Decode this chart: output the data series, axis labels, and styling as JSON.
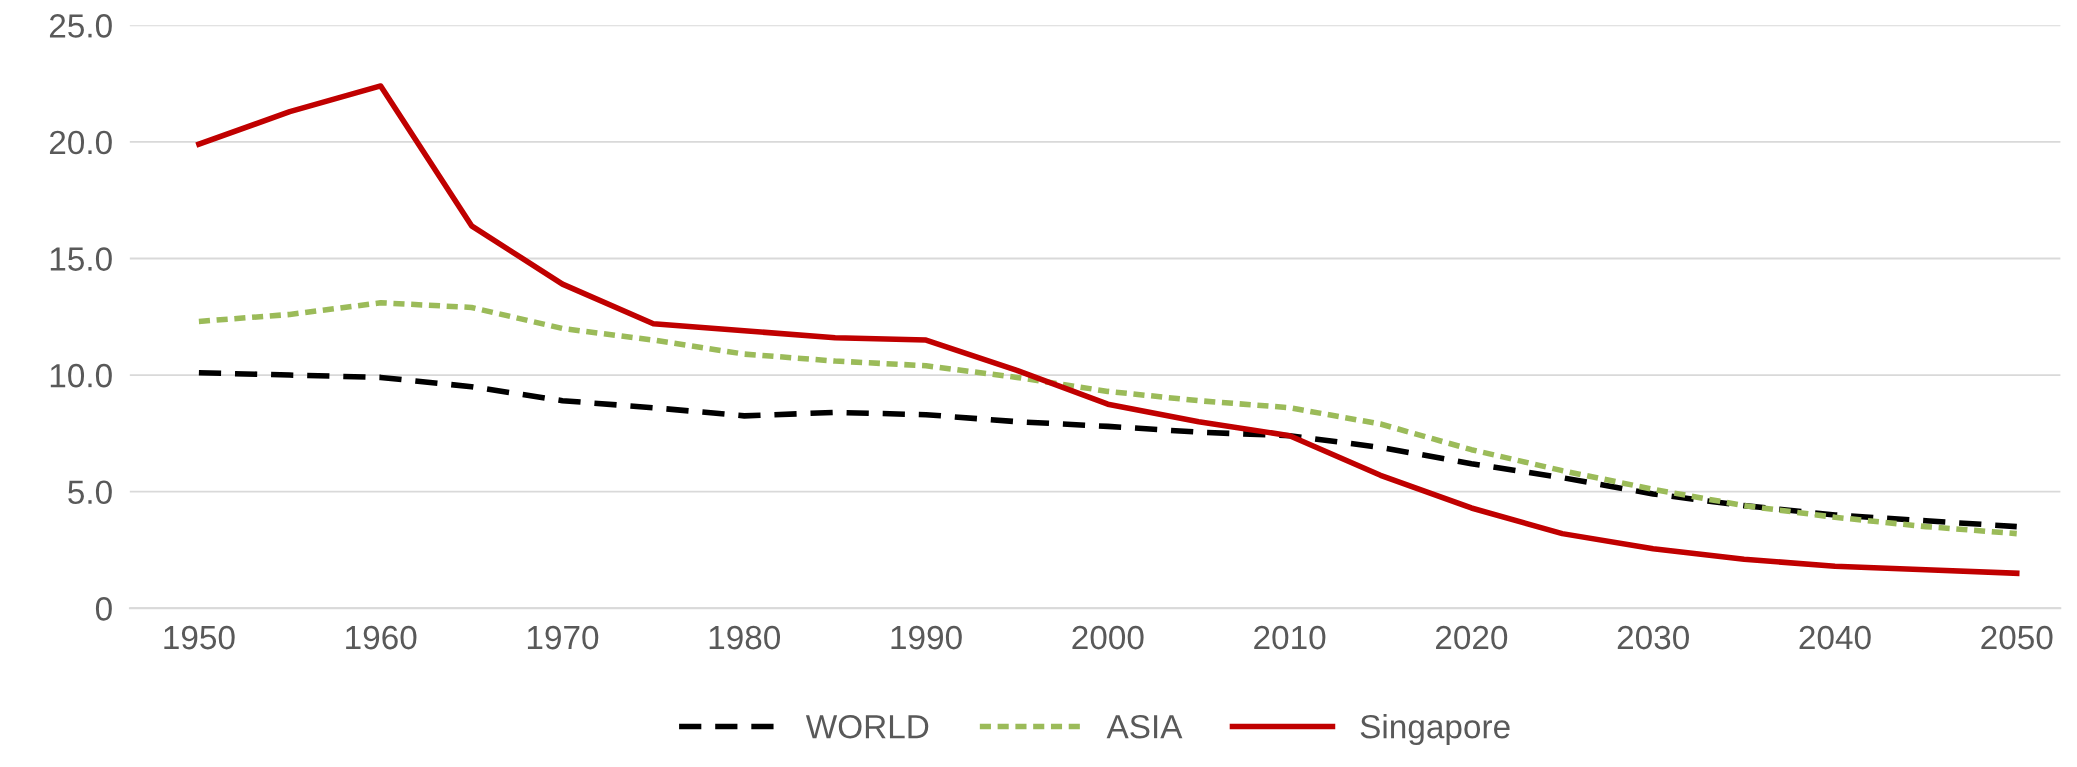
{
  "chart_data": {
    "type": "line",
    "x": [
      1950,
      1955,
      1960,
      1965,
      1970,
      1975,
      1980,
      1985,
      1990,
      1995,
      2000,
      2005,
      2010,
      2015,
      2020,
      2025,
      2030,
      2035,
      2040,
      2045,
      2050
    ],
    "series": [
      {
        "name": "WORLD",
        "color": "#000000",
        "line_style": "dashed",
        "values": [
          10.1,
          10.0,
          9.9,
          9.5,
          8.9,
          8.6,
          8.25,
          8.4,
          8.3,
          8.0,
          7.8,
          7.55,
          7.4,
          6.9,
          6.2,
          5.6,
          4.9,
          4.4,
          4.0,
          3.75,
          3.5
        ]
      },
      {
        "name": "ASIA",
        "color": "#9bbb59",
        "line_style": "dotted",
        "values": [
          12.3,
          12.6,
          13.1,
          12.9,
          12.0,
          11.5,
          10.9,
          10.6,
          10.4,
          9.9,
          9.3,
          8.9,
          8.6,
          7.9,
          6.8,
          5.9,
          5.1,
          4.4,
          3.9,
          3.5,
          3.2
        ]
      },
      {
        "name": "Singapore",
        "color": "#c00000",
        "line_style": "solid",
        "values": [
          19.9,
          21.3,
          22.4,
          16.4,
          13.9,
          12.2,
          11.9,
          11.6,
          11.5,
          10.2,
          8.75,
          8.0,
          7.4,
          5.7,
          4.3,
          3.2,
          2.55,
          2.1,
          1.8,
          1.65,
          1.5
        ]
      }
    ],
    "xlim": [
      1946.2,
      2052.4
    ],
    "xticks": [
      1950,
      1960,
      1970,
      1980,
      1990,
      2000,
      2010,
      2020,
      2030,
      2040,
      2050
    ],
    "ylim": [
      0,
      25
    ],
    "yticks": [
      0,
      {
        "value": 5,
        "label": "5.0"
      },
      {
        "value": 10,
        "label": "10.0"
      },
      {
        "value": 15,
        "label": "15.0"
      },
      {
        "value": 20,
        "label": "20.0"
      },
      {
        "value": 25,
        "label": "25.0"
      }
    ],
    "grid": "y",
    "legend": "bottom",
    "marker": "none"
  }
}
